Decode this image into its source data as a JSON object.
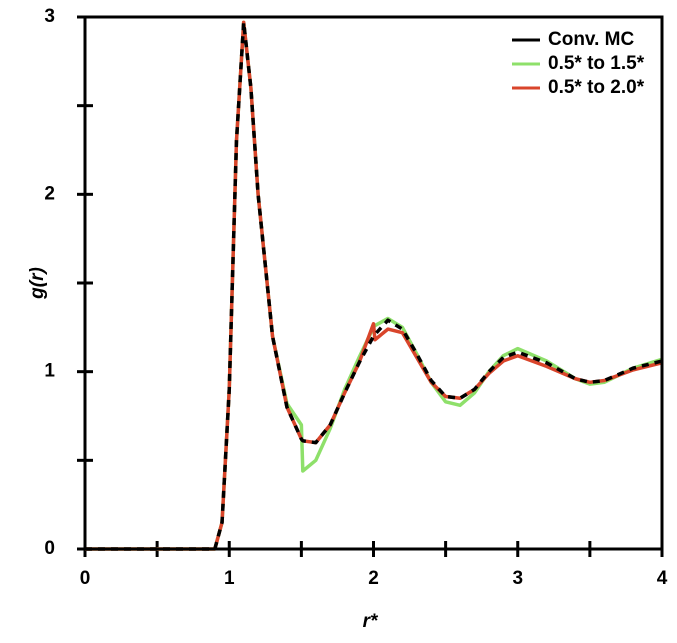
{
  "chart_data": {
    "type": "line",
    "xlabel": "r*",
    "ylabel": "g(r)",
    "x": [
      0,
      0.5,
      0.9,
      0.95,
      1.0,
      1.05,
      1.1,
      1.15,
      1.2,
      1.3,
      1.4,
      1.5,
      1.51,
      1.6,
      1.7,
      1.8,
      1.9,
      2.0,
      2.01,
      2.1,
      2.2,
      2.3,
      2.4,
      2.5,
      2.6,
      2.7,
      2.8,
      2.9,
      3.0,
      3.2,
      3.4,
      3.5,
      3.6,
      3.8,
      4.0
    ],
    "series": [
      {
        "name": "0.5* to 1.5*",
        "color": "#8ee06a",
        "dashed": false,
        "values": [
          0,
          0,
          0,
          0.15,
          0.9,
          2.3,
          2.97,
          2.6,
          2.0,
          1.2,
          0.82,
          0.7,
          0.44,
          0.5,
          0.68,
          0.9,
          1.08,
          1.25,
          1.26,
          1.3,
          1.25,
          1.1,
          0.94,
          0.83,
          0.81,
          0.88,
          1.0,
          1.09,
          1.13,
          1.06,
          0.96,
          0.93,
          0.94,
          1.02,
          1.07
        ]
      },
      {
        "name": "0.5* to 2.0*",
        "color": "#d9452b",
        "dashed": false,
        "values": [
          0,
          0,
          0,
          0.15,
          0.9,
          2.3,
          2.97,
          2.6,
          2.0,
          1.2,
          0.8,
          0.62,
          0.61,
          0.6,
          0.7,
          0.88,
          1.05,
          1.27,
          1.18,
          1.24,
          1.22,
          1.08,
          0.94,
          0.86,
          0.85,
          0.9,
          0.99,
          1.06,
          1.09,
          1.03,
          0.96,
          0.94,
          0.95,
          1.01,
          1.05
        ]
      },
      {
        "name": "Conv. MC",
        "color": "#000000",
        "dashed": true,
        "values": [
          0,
          0,
          0,
          0.15,
          0.9,
          2.3,
          2.97,
          2.6,
          2.0,
          1.2,
          0.8,
          0.62,
          0.61,
          0.6,
          0.7,
          0.88,
          1.05,
          1.2,
          1.21,
          1.29,
          1.24,
          1.1,
          0.95,
          0.86,
          0.85,
          0.9,
          1.0,
          1.08,
          1.11,
          1.05,
          0.96,
          0.94,
          0.95,
          1.02,
          1.06
        ]
      }
    ],
    "legend_order": [
      2,
      0,
      1
    ],
    "legend": "upper right",
    "xlim": [
      0,
      4
    ],
    "ylim": [
      0,
      3
    ],
    "xticks": [
      0,
      1,
      2,
      3,
      4
    ],
    "yticks": [
      0,
      1,
      2,
      3
    ],
    "xminorticks": [
      0.5,
      1.5,
      2.5,
      3.5
    ],
    "yminorticks": [
      0.5,
      1.5,
      2.5
    ]
  }
}
